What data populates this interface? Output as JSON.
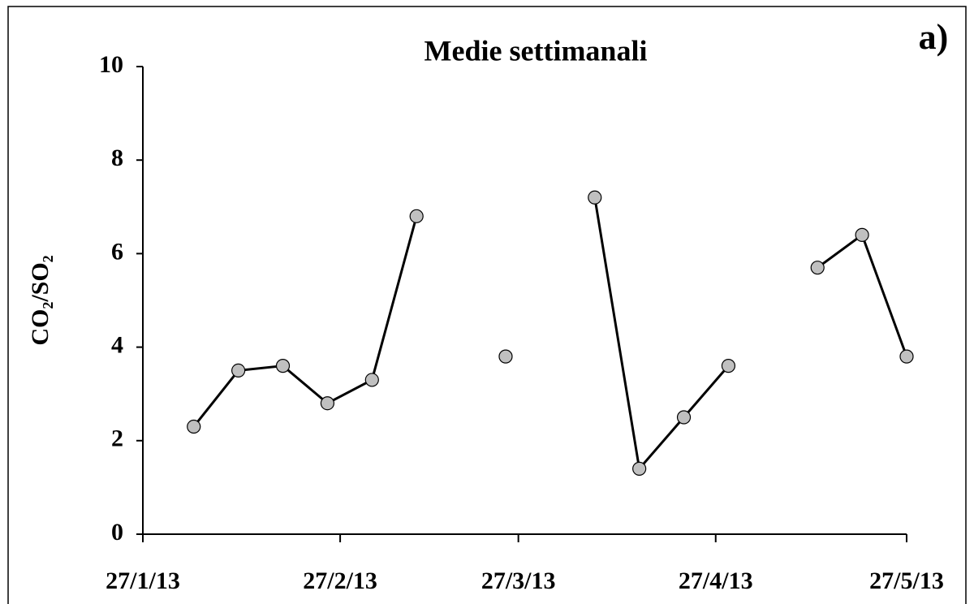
{
  "chart_data": {
    "type": "line",
    "title": "Medie settimanali",
    "annotation": "a)",
    "y_label": "CO₂/SO₂",
    "x": [
      "2013-02-04",
      "2013-02-11",
      "2013-02-18",
      "2013-02-25",
      "2013-03-04",
      "2013-03-11",
      "2013-03-18",
      "2013-03-25",
      "2013-04-01",
      "2013-04-08",
      "2013-04-15",
      "2013-04-22",
      "2013-04-29",
      "2013-05-06",
      "2013-05-13",
      "2013-05-20",
      "2013-05-27"
    ],
    "series": [
      {
        "name": "CO₂/SO₂",
        "color": "#000000",
        "marker_color": "#c0c0c0",
        "values": [
          2.3,
          3.5,
          3.6,
          2.8,
          3.3,
          6.8,
          null,
          3.8,
          null,
          7.2,
          1.4,
          2.5,
          3.6,
          null,
          5.7,
          6.4,
          3.8
        ]
      }
    ],
    "xlim": [
      "2013-01-27",
      "2013-05-27"
    ],
    "xticks": [
      {
        "value": "2013-01-27",
        "label": "27/1/13"
      },
      {
        "value": "2013-02-27",
        "label": "27/2/13"
      },
      {
        "value": "2013-03-27",
        "label": "27/3/13"
      },
      {
        "value": "2013-04-27",
        "label": "27/4/13"
      },
      {
        "value": "2013-05-27",
        "label": "27/5/13"
      }
    ],
    "ylim": [
      0,
      10
    ],
    "yticks": [
      0,
      2,
      4,
      6,
      8,
      10
    ],
    "grid": false
  }
}
